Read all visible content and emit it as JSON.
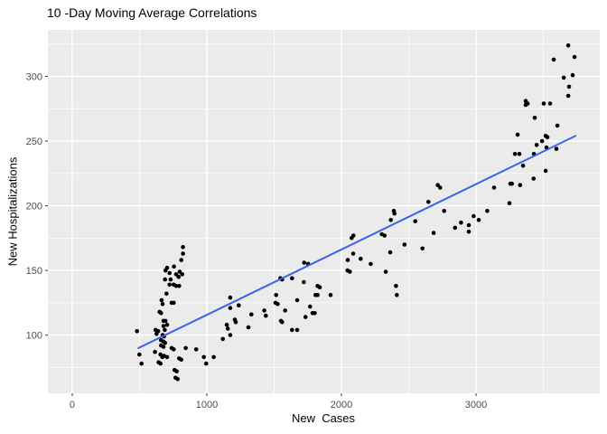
{
  "colors": {
    "panel_bg": "#EBEBEB",
    "grid": "#FFFFFF",
    "point": "#000000",
    "trend": "#3964E8",
    "tick_label": "#4D4D4D",
    "tick_mark": "#333333",
    "title_text": "#000000"
  },
  "chart_data": {
    "type": "scatter",
    "title": "10 -Day Moving Average Correlations",
    "xlabel": "New  Cases",
    "ylabel": "New Hospitalizations",
    "xlim": [
      -181,
      3919
    ],
    "ylim": [
      55,
      336
    ],
    "x_major_ticks": [
      0,
      1000,
      2000,
      3000
    ],
    "x_minor_ticks": [
      500,
      1500,
      2500,
      3500
    ],
    "y_major_ticks": [
      100,
      150,
      200,
      250,
      300
    ],
    "y_minor_ticks": [
      75,
      125,
      175,
      225,
      275,
      325
    ],
    "grid": true,
    "legend": "none",
    "trend_line": {
      "type": "linear",
      "x1": 492,
      "y1": 90,
      "x2": 3738,
      "y2": 254
    },
    "points": [
      [
        3685,
        324
      ],
      [
        3732,
        315
      ],
      [
        3577,
        313
      ],
      [
        3718,
        301
      ],
      [
        3651,
        299
      ],
      [
        3691,
        292
      ],
      [
        3685,
        285
      ],
      [
        3369,
        281
      ],
      [
        3383,
        279
      ],
      [
        3369,
        278
      ],
      [
        3503,
        279
      ],
      [
        3550,
        279
      ],
      [
        3436,
        268
      ],
      [
        3604,
        262
      ],
      [
        3309,
        255
      ],
      [
        3517,
        254
      ],
      [
        3530,
        253
      ],
      [
        3450,
        247
      ],
      [
        3490,
        250
      ],
      [
        3523,
        245
      ],
      [
        3597,
        244
      ],
      [
        3289,
        240
      ],
      [
        3322,
        240
      ],
      [
        3430,
        240
      ],
      [
        3349,
        231
      ],
      [
        3517,
        227
      ],
      [
        3427,
        221
      ],
      [
        3255,
        217
      ],
      [
        3266,
        217
      ],
      [
        3327,
        216
      ],
      [
        3134,
        214
      ],
      [
        2716,
        216
      ],
      [
        2733,
        214
      ],
      [
        3248,
        202
      ],
      [
        2646,
        203
      ],
      [
        2763,
        196
      ],
      [
        3083,
        196
      ],
      [
        2982,
        192
      ],
      [
        3020,
        189
      ],
      [
        2548,
        188
      ],
      [
        2888,
        187
      ],
      [
        2946,
        185
      ],
      [
        2844,
        183
      ],
      [
        2946,
        180
      ],
      [
        2685,
        179
      ],
      [
        2602,
        167
      ],
      [
        2389,
        196
      ],
      [
        2394,
        194
      ],
      [
        2367,
        189
      ],
      [
        2089,
        177
      ],
      [
        2076,
        175
      ],
      [
        2300,
        178
      ],
      [
        2320,
        177
      ],
      [
        2468,
        170
      ],
      [
        2362,
        164
      ],
      [
        2087,
        163
      ],
      [
        2143,
        159
      ],
      [
        2047,
        158
      ],
      [
        2217,
        155
      ],
      [
        1723,
        156
      ],
      [
        1752,
        155
      ],
      [
        2329,
        149
      ],
      [
        2045,
        150
      ],
      [
        2062,
        149
      ],
      [
        1546,
        144
      ],
      [
        1559,
        143
      ],
      [
        1633,
        144
      ],
      [
        823,
        168
      ],
      [
        823,
        163
      ],
      [
        810,
        158
      ],
      [
        705,
        152
      ],
      [
        693,
        150
      ],
      [
        756,
        153
      ],
      [
        723,
        148
      ],
      [
        772,
        147
      ],
      [
        799,
        149
      ],
      [
        817,
        147
      ],
      [
        790,
        145
      ],
      [
        689,
        143
      ],
      [
        731,
        143
      ],
      [
        723,
        139
      ],
      [
        754,
        139
      ],
      [
        772,
        138
      ],
      [
        794,
        138
      ],
      [
        700,
        132
      ],
      [
        664,
        127
      ],
      [
        671,
        124
      ],
      [
        738,
        125
      ],
      [
        754,
        125
      ],
      [
        649,
        118
      ],
      [
        660,
        117
      ],
      [
        678,
        111
      ],
      [
        693,
        111
      ],
      [
        705,
        108
      ],
      [
        481,
        103
      ],
      [
        619,
        104
      ],
      [
        638,
        103
      ],
      [
        626,
        101
      ],
      [
        678,
        107
      ],
      [
        687,
        104
      ],
      [
        671,
        100
      ],
      [
        682,
        99
      ],
      [
        660,
        96
      ],
      [
        678,
        95
      ],
      [
        689,
        94
      ],
      [
        660,
        92
      ],
      [
        678,
        91
      ],
      [
        499,
        85
      ],
      [
        615,
        87
      ],
      [
        656,
        85
      ],
      [
        669,
        83
      ],
      [
        682,
        84
      ],
      [
        738,
        90
      ],
      [
        754,
        89
      ],
      [
        515,
        78
      ],
      [
        642,
        79
      ],
      [
        656,
        78
      ],
      [
        705,
        83
      ],
      [
        794,
        82
      ],
      [
        810,
        81
      ],
      [
        760,
        73
      ],
      [
        776,
        72
      ],
      [
        843,
        90
      ],
      [
        921,
        89
      ],
      [
        978,
        83
      ],
      [
        995,
        78
      ],
      [
        1051,
        83
      ],
      [
        1119,
        97
      ],
      [
        1148,
        108
      ],
      [
        1156,
        105
      ],
      [
        767,
        67
      ],
      [
        783,
        66
      ],
      [
        1720,
        141
      ],
      [
        1823,
        138
      ],
      [
        1839,
        137
      ],
      [
        2405,
        138
      ],
      [
        2411,
        131
      ],
      [
        1515,
        131
      ],
      [
        1807,
        131
      ],
      [
        1823,
        131
      ],
      [
        1919,
        131
      ],
      [
        1671,
        127
      ],
      [
        1510,
        125
      ],
      [
        1526,
        124
      ],
      [
        1174,
        129
      ],
      [
        1174,
        121
      ],
      [
        1174,
        100
      ],
      [
        1237,
        123
      ],
      [
        1767,
        122
      ],
      [
        1785,
        117
      ],
      [
        1801,
        117
      ],
      [
        1427,
        119
      ],
      [
        1438,
        115
      ],
      [
        1331,
        116
      ],
      [
        1582,
        119
      ],
      [
        1208,
        112
      ],
      [
        1215,
        110
      ],
      [
        1550,
        111
      ],
      [
        1559,
        110
      ],
      [
        1733,
        114
      ],
      [
        1309,
        106
      ],
      [
        1633,
        104
      ],
      [
        1671,
        104
      ]
    ]
  }
}
